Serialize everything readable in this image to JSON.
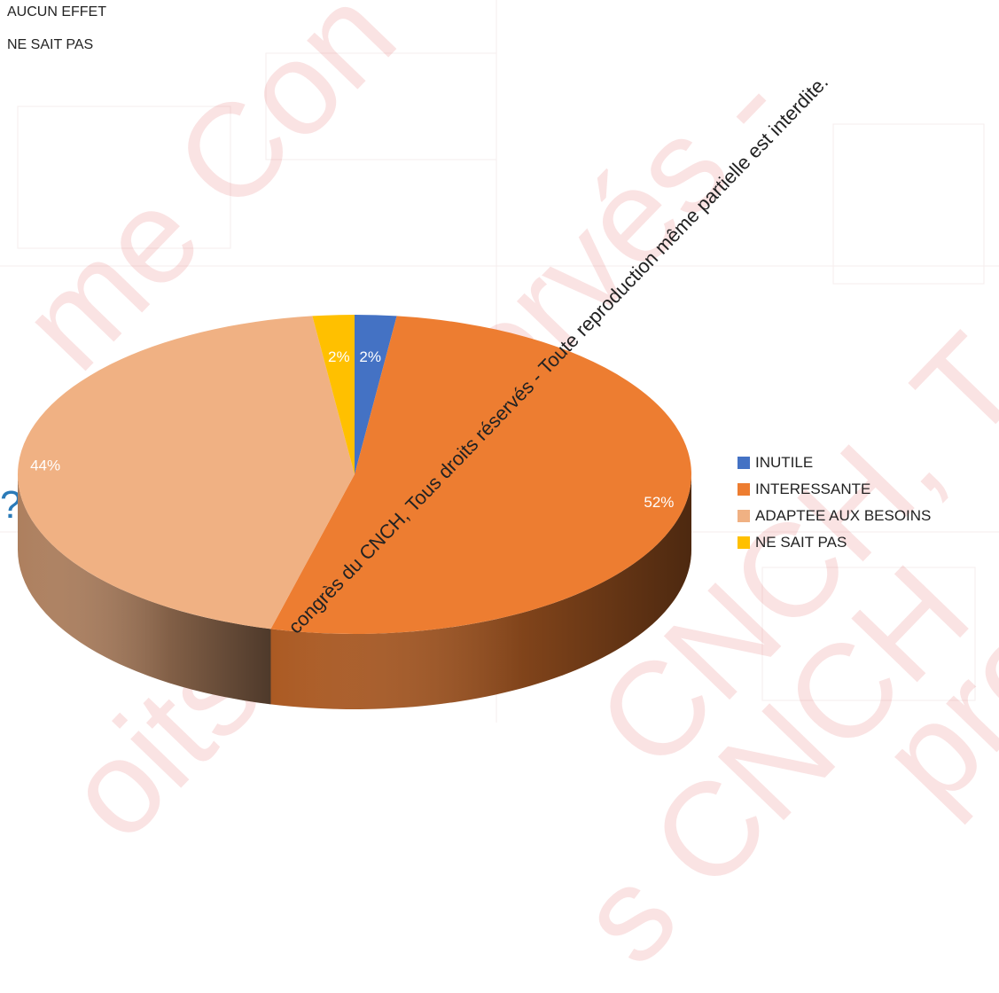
{
  "top_legend": {
    "items": [
      "AUCUN EFFET",
      "NE SAIT PAS"
    ]
  },
  "question_mark": "?",
  "watermark": {
    "text": "congrès du CNCH, Tous droits réservés - Toute reproduction même partielle est interdite.",
    "background_fragments": [
      "me Con",
      "s réservés -",
      "CNCH, T",
      "oits rés",
      "s CNCH",
      "pro"
    ]
  },
  "chart_data": {
    "type": "pie",
    "style": "3d",
    "categories": [
      "INUTILE",
      "INTERESSANTE",
      "ADAPTEE AUX BESOINS",
      "NE SAIT PAS"
    ],
    "values": [
      2,
      52,
      44,
      2
    ],
    "labels": [
      "2%",
      "52%",
      "44%",
      "2%"
    ],
    "colors": [
      "#4472c4",
      "#ed7d31",
      "#f0b183",
      "#ffc000"
    ],
    "start_angle": "12 o'clock",
    "direction": "clockwise",
    "legend_position": "right"
  }
}
